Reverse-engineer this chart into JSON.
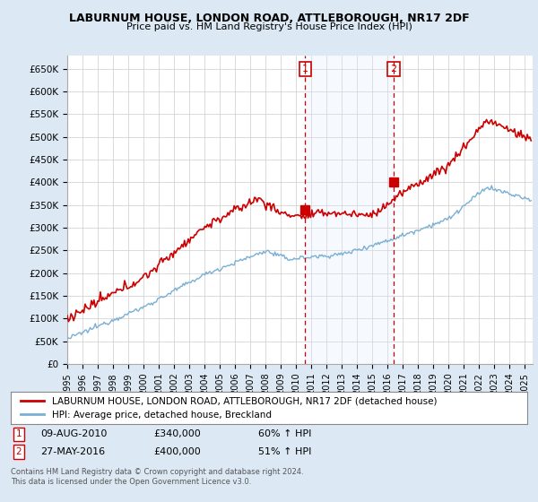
{
  "title": "LABURNUM HOUSE, LONDON ROAD, ATTLEBOROUGH, NR17 2DF",
  "subtitle": "Price paid vs. HM Land Registry's House Price Index (HPI)",
  "ylim": [
    0,
    680000
  ],
  "yticks": [
    0,
    50000,
    100000,
    150000,
    200000,
    250000,
    300000,
    350000,
    400000,
    450000,
    500000,
    550000,
    600000,
    650000
  ],
  "ytick_labels": [
    "£0",
    "£50K",
    "£100K",
    "£150K",
    "£200K",
    "£250K",
    "£300K",
    "£350K",
    "£400K",
    "£450K",
    "£500K",
    "£550K",
    "£600K",
    "£650K"
  ],
  "red_color": "#cc0000",
  "blue_color": "#7aafd4",
  "shade_color": "#ddeeff",
  "sale1_date": 2010.6,
  "sale1_price": 340000,
  "sale2_date": 2016.4,
  "sale2_price": 400000,
  "sale1_text": "09-AUG-2010",
  "sale1_amount": "£340,000",
  "sale1_pct": "60% ↑ HPI",
  "sale2_text": "27-MAY-2016",
  "sale2_amount": "£400,000",
  "sale2_pct": "51% ↑ HPI",
  "legend_red": "LABURNUM HOUSE, LONDON ROAD, ATTLEBOROUGH, NR17 2DF (detached house)",
  "legend_blue": "HPI: Average price, detached house, Breckland",
  "footnote1": "Contains HM Land Registry data © Crown copyright and database right 2024.",
  "footnote2": "This data is licensed under the Open Government Licence v3.0.",
  "background_color": "#dce9f5",
  "plot_bg_color": "#ffffff",
  "grid_color": "#cccccc",
  "xmin": 1995,
  "xmax": 2025.5
}
